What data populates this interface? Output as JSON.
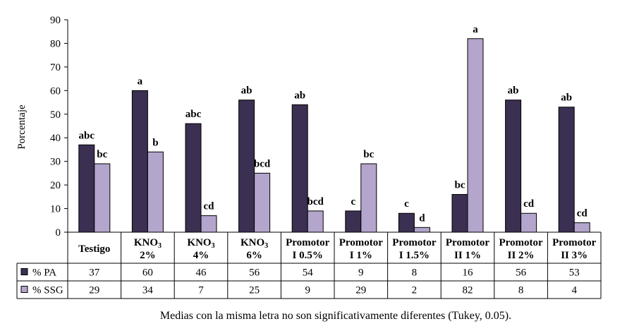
{
  "chart_data": {
    "type": "bar",
    "ylabel": "Porcentaje",
    "ylim": [
      0,
      90
    ],
    "yticks": [
      0,
      10,
      20,
      30,
      40,
      50,
      60,
      70,
      80,
      90
    ],
    "grid": false,
    "legend": "table-rows",
    "categories": [
      {
        "lines": [
          {
            "text": "Testigo",
            "sub": ""
          }
        ]
      },
      {
        "lines": [
          {
            "text": "KNO",
            "sub": "3"
          },
          {
            "text": "2%",
            "sub": ""
          }
        ]
      },
      {
        "lines": [
          {
            "text": "KNO",
            "sub": "3"
          },
          {
            "text": "4%",
            "sub": ""
          }
        ]
      },
      {
        "lines": [
          {
            "text": "KNO",
            "sub": "3"
          },
          {
            "text": "6%",
            "sub": ""
          }
        ]
      },
      {
        "lines": [
          {
            "text": "Promotor",
            "sub": ""
          },
          {
            "text": "I 0.5%",
            "sub": ""
          }
        ]
      },
      {
        "lines": [
          {
            "text": "Promotor",
            "sub": ""
          },
          {
            "text": "I 1%",
            "sub": ""
          }
        ]
      },
      {
        "lines": [
          {
            "text": "Promotor",
            "sub": ""
          },
          {
            "text": "I 1.5%",
            "sub": ""
          }
        ]
      },
      {
        "lines": [
          {
            "text": "Promotor",
            "sub": ""
          },
          {
            "text": "II 1%",
            "sub": ""
          }
        ]
      },
      {
        "lines": [
          {
            "text": "Promotor",
            "sub": ""
          },
          {
            "text": "II 2%",
            "sub": ""
          }
        ]
      },
      {
        "lines": [
          {
            "text": "Promotor",
            "sub": ""
          },
          {
            "text": "II 3%",
            "sub": ""
          }
        ]
      }
    ],
    "series": [
      {
        "name": "% PA",
        "color": "#3b2f52",
        "values": [
          37,
          60,
          46,
          56,
          54,
          9,
          8,
          16,
          56,
          53
        ],
        "letters": [
          "abc",
          "a",
          "abc",
          "ab",
          "ab",
          "c",
          "c",
          "bc",
          "ab",
          "ab"
        ]
      },
      {
        "name": "% SSG",
        "color": "#b3a5cc",
        "values": [
          29,
          34,
          7,
          25,
          9,
          29,
          2,
          82,
          8,
          4
        ],
        "letters": [
          "bc",
          "b",
          "cd",
          "bcd",
          "bcd",
          "bc",
          "d",
          "a",
          "cd",
          "cd"
        ]
      }
    ],
    "note": "Medias con la misma letra no son significativamente diferentes (Tukey, 0.05)."
  }
}
